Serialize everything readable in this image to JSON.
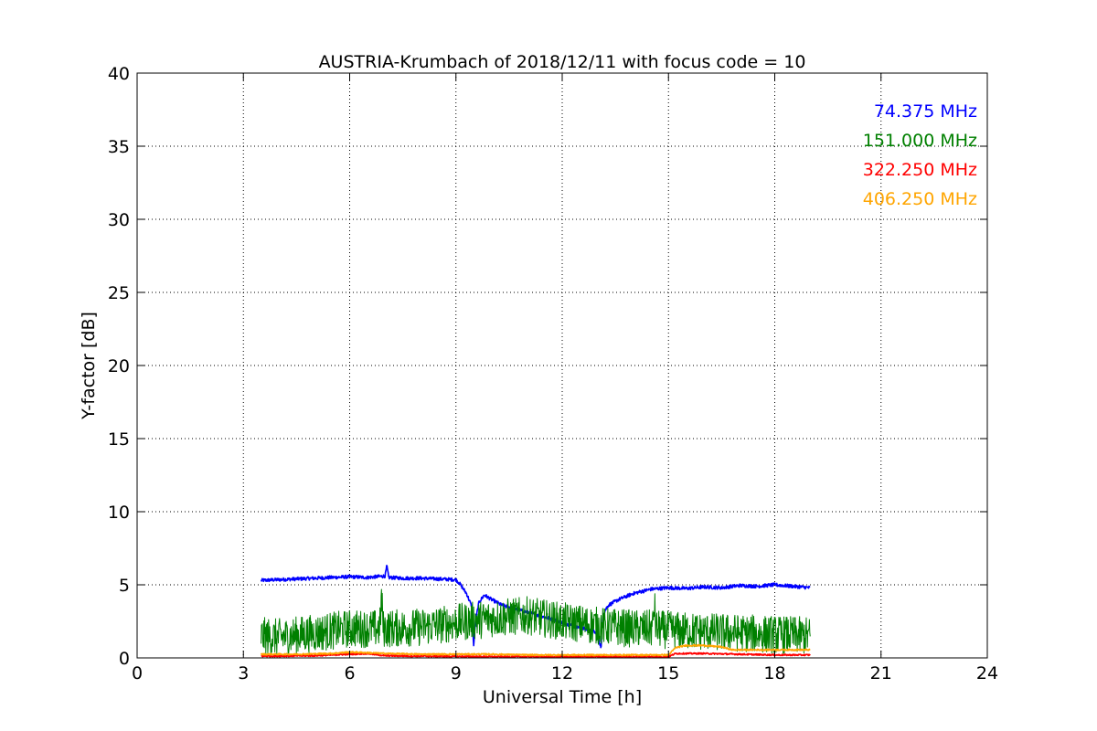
{
  "chart_data": {
    "type": "line",
    "title": "AUSTRIA-Krumbach of 2018/12/11 with focus code = 10",
    "xlabel": "Universal Time [h]",
    "ylabel": "Y-factor [dB]",
    "xlim": [
      0,
      24
    ],
    "ylim": [
      0,
      40
    ],
    "xticks": [
      "0",
      "3",
      "6",
      "9",
      "12",
      "15",
      "18",
      "21",
      "24"
    ],
    "yticks": [
      "0",
      "5",
      "10",
      "15",
      "20",
      "25",
      "30",
      "35",
      "40"
    ],
    "grid": true,
    "legend_position": "top-right",
    "series": [
      {
        "name": "74.375 MHz",
        "color": "#0000ff",
        "x": [
          3.5,
          4.0,
          4.5,
          5.0,
          5.5,
          6.0,
          6.5,
          7.0,
          7.05,
          7.1,
          7.5,
          8.0,
          8.5,
          9.0,
          9.1,
          9.3,
          9.45,
          9.5,
          9.55,
          9.65,
          9.8,
          10.0,
          10.3,
          10.6,
          10.9,
          11.2,
          11.5,
          11.8,
          12.0,
          12.3,
          12.6,
          12.9,
          13.0,
          13.1,
          13.15,
          13.3,
          13.6,
          14.0,
          14.5,
          15.0,
          15.5,
          16.0,
          16.5,
          17.0,
          17.5,
          18.0,
          18.5,
          19.0
        ],
        "y": [
          5.3,
          5.35,
          5.4,
          5.45,
          5.5,
          5.55,
          5.5,
          5.6,
          6.3,
          5.5,
          5.45,
          5.45,
          5.4,
          5.35,
          5.1,
          4.4,
          3.5,
          0.8,
          2.5,
          3.8,
          4.3,
          4.0,
          3.6,
          3.4,
          3.2,
          3.0,
          2.8,
          2.6,
          2.4,
          2.2,
          2.0,
          1.8,
          1.5,
          0.7,
          3.0,
          3.6,
          4.0,
          4.4,
          4.7,
          4.8,
          4.75,
          4.85,
          4.8,
          4.95,
          4.9,
          5.0,
          4.9,
          4.8
        ],
        "noise": 0.12
      },
      {
        "name": "151.000 MHz",
        "color": "#008000",
        "x": [
          3.5,
          4.0,
          5.0,
          6.0,
          6.85,
          6.9,
          6.95,
          7.0,
          8.0,
          9.0,
          10.0,
          11.0,
          12.0,
          13.0,
          14.0,
          14.55,
          14.6,
          14.65,
          15.0,
          16.0,
          17.0,
          18.0,
          19.0
        ],
        "y": [
          1.5,
          1.4,
          1.7,
          2.0,
          2.0,
          4.2,
          2.0,
          2.0,
          2.1,
          2.4,
          2.7,
          2.9,
          2.5,
          2.2,
          2.0,
          2.0,
          3.7,
          2.0,
          1.9,
          1.8,
          1.7,
          1.6,
          1.5
        ],
        "noise": 1.3
      },
      {
        "name": "322.250 MHz",
        "color": "#ff0000",
        "x": [
          3.5,
          5.0,
          6.0,
          6.5,
          7.0,
          8.0,
          9.0,
          10.0,
          11.0,
          12.0,
          13.0,
          14.0,
          15.0,
          15.2,
          16.0,
          17.0,
          18.0,
          19.0
        ],
        "y": [
          0.12,
          0.15,
          0.25,
          0.3,
          0.15,
          0.12,
          0.1,
          0.08,
          0.08,
          0.08,
          0.08,
          0.08,
          0.08,
          0.3,
          0.3,
          0.25,
          0.2,
          0.2
        ],
        "noise": 0.05
      },
      {
        "name": "406.250 MHz",
        "color": "#ffa500",
        "x": [
          3.5,
          4.5,
          5.5,
          6.0,
          6.5,
          7.0,
          8.0,
          9.0,
          10.0,
          11.0,
          12.0,
          13.0,
          14.0,
          15.0,
          15.2,
          15.5,
          16.0,
          16.5,
          16.8,
          17.0,
          18.0,
          19.0
        ],
        "y": [
          0.25,
          0.25,
          0.3,
          0.4,
          0.35,
          0.3,
          0.25,
          0.25,
          0.25,
          0.2,
          0.2,
          0.2,
          0.2,
          0.2,
          0.7,
          0.85,
          0.85,
          0.75,
          0.55,
          0.55,
          0.55,
          0.55
        ],
        "noise": 0.05
      }
    ]
  }
}
